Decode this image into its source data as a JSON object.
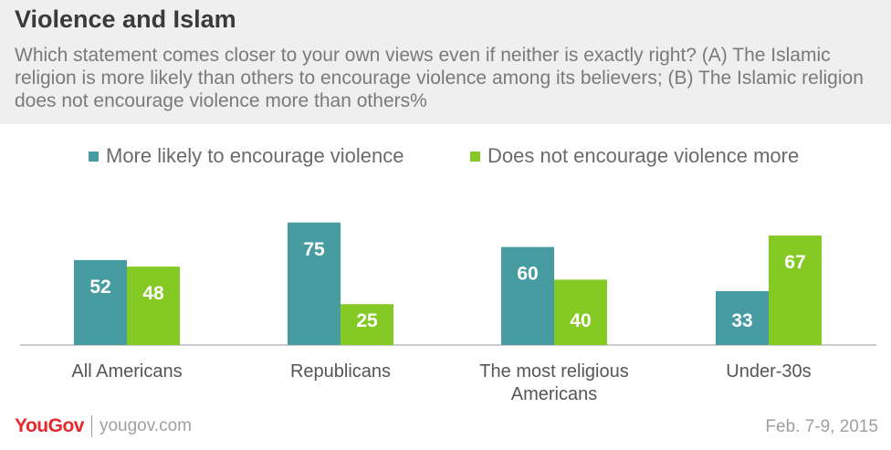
{
  "header": {
    "title": "Violence and Islam",
    "subtitle": "Which statement comes closer to your own views even if neither is exactly right? (A) The Islamic religion is more likely than others to encourage violence among its believers; (B) The Islamic religion does not encourage violence more than others%"
  },
  "footer": {
    "logo": "YouGov",
    "site": "yougov.com",
    "date": "Feb. 7-9, 2015"
  },
  "colors": {
    "series1": "#469ca0",
    "series2": "#84c924",
    "axis": "#cccccc",
    "label": "#ffffff",
    "category": "#555555"
  },
  "chart_data": {
    "type": "bar",
    "categories": [
      "All Americans",
      "Republicans",
      "The most religious Americans",
      "Under-30s"
    ],
    "series": [
      {
        "name": "More likely to encourage violence",
        "values": [
          52,
          75,
          60,
          33
        ]
      },
      {
        "name": "Does not encourage violence more",
        "values": [
          48,
          25,
          40,
          67
        ]
      }
    ],
    "legend_position": "top",
    "grid": false,
    "ylim": [
      0,
      80
    ]
  }
}
